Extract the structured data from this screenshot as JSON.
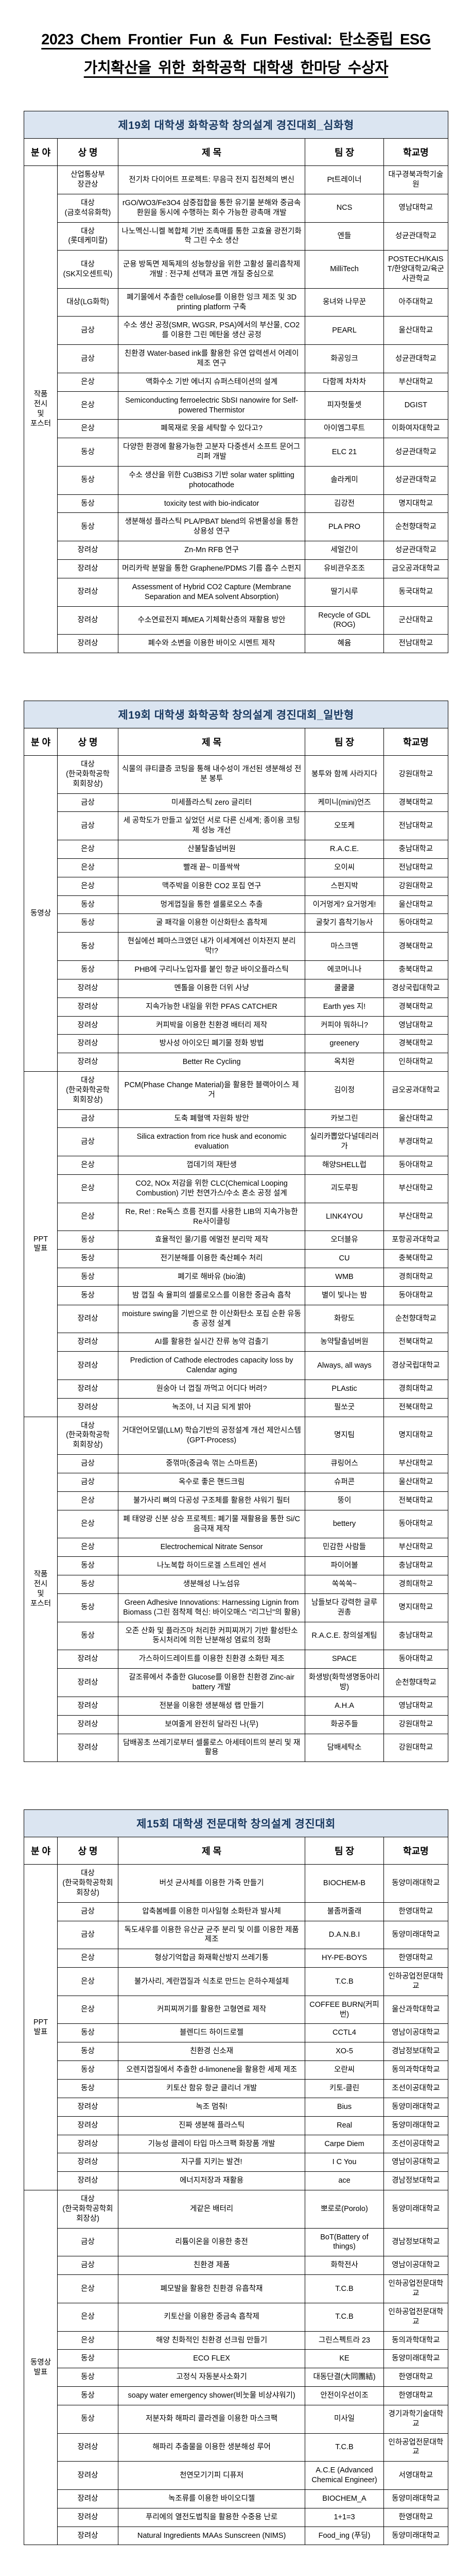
{
  "page_title": "2023 Chem Frontier Fun & Fun Festival: 탄소중립 ESG\n가치확산을 위한 화학공학 대학생 한마당 수상자",
  "theme": {
    "table_title_bg": "#dbe5f1",
    "table_title_color": "#17375e",
    "border_color": "#000000"
  },
  "tables": [
    {
      "title": "제19회 대학생 화학공학 창의설계 경진대회_심화형",
      "columns": [
        "분 야",
        "상 명",
        "제  목",
        "팀 장",
        "학교명"
      ],
      "groups": [
        {
          "category": "작품\n전시\n및\n포스터",
          "rows": [
            {
              "award": "산업통상부\n장관상",
              "title": "전기차 다이어트 프로젝트: 무음극 전지 집전체의 변신",
              "team": "Pt트레이너",
              "school": "대구경북과학기술원"
            },
            {
              "award": "대상\n(금호석유화학)",
              "title": "rGO/WO3/Fe3O4 삼중접합을 통한 유기물 분해와 중금속 환원을 동시에 수행하는 회수 가능한 광촉매 개발",
              "team": "NCS",
              "school": "영남대학교"
            },
            {
              "award": "대상\n(롯데케미칼)",
              "title": "나노멕신-니켈 복합체 기반 조촉매를 통한 고효율 광전기화학 그린 수소 생산",
              "team": "엔들",
              "school": "성균관대학교"
            },
            {
              "award": "대상\n(SK지오센트릭)",
              "title": "군용 방독면 제독제의 성능향상을 위한 고활성 물리흡착제 개발 : 전구체 선택과 표면 개질 중심으로",
              "team": "MilliTech",
              "school": "POSTECH/KAIST/한양대학교/육군사관학교"
            },
            {
              "award": "대상(LG화학)",
              "title": "폐기물에서 추출한 cellulose를 이용한 잉크 제조 및 3D printing platform 구축",
              "team": "웅녀와 나무꾼",
              "school": "아주대학교"
            },
            {
              "award": "금상",
              "title": "수소 생산 공정(SMR, WGSR, PSA)에서의 부산물, CO2를 이용한 그린 메탄올 생산 공정",
              "team": "PEARL",
              "school": "울산대학교"
            },
            {
              "award": "금상",
              "title": "친환경 Water-based ink를 활용한 유연 압력센서 어레이 제조 연구",
              "team": "화공잉크",
              "school": "성균관대학교"
            },
            {
              "award": "은상",
              "title": "액화수소 기반 에너지 슈퍼스테이션의 설계",
              "team": "다함께 차차차",
              "school": "부산대학교"
            },
            {
              "award": "은상",
              "title": "Semiconducting ferroelectric SbSI nanowire for Self-powered Thermistor",
              "team": "피자헛둘셋",
              "school": "DGIST"
            },
            {
              "award": "은상",
              "title": "폐목재로 옷을 세탁할 수 있다고?",
              "team": "아이엠그루트",
              "school": "이화여자대학교"
            },
            {
              "award": "동상",
              "title": "다양한 환경에 활용가능한 고분자 다중센서 소프트 문어그리퍼 개발",
              "team": "ELC 21",
              "school": "성균관대학교"
            },
            {
              "award": "동상",
              "title": "수소 생산을 위한 Cu3BiS3 기반 solar water splitting photocathode",
              "team": "솔라케미",
              "school": "성균관대학교"
            },
            {
              "award": "동상",
              "title": "toxicity test with bio-indicator",
              "team": "김강전",
              "school": "명지대학교"
            },
            {
              "award": "동상",
              "title": "생분해성 플라스틱 PLA/PBAT blend의 유변물성을 통한 상용성 연구",
              "team": "PLA PRO",
              "school": "순천향대학교"
            },
            {
              "award": "장려상",
              "title": "Zn-Mn RFB 연구",
              "team": "세얼간이",
              "school": "성균관대학교"
            },
            {
              "award": "장려상",
              "title": "머리카락 분말을 통한 Graphene/PDMS 기름 흡수 스펀지",
              "team": "유비관우조조",
              "school": "금오공과대학교"
            },
            {
              "award": "장려상",
              "title": "Assessment of Hybrid CO2 Capture (Membrane Separation and MEA solvent Absorption)",
              "team": "딸기시루",
              "school": "동국대학교"
            },
            {
              "award": "장려상",
              "title": "수소연료전지 폐MEA 기체확산층의 재활용 방안",
              "team": "Recycle of GDL (ROG)",
              "school": "군산대학교"
            },
            {
              "award": "장려상",
              "title": "폐수와 소변을 이용한 바이오 시멘트 제작",
              "team": "혜윰",
              "school": "전남대학교"
            }
          ]
        }
      ]
    },
    {
      "title": "제19회 대학생 화학공학 창의설계 경진대회_일반형",
      "columns": [
        "분 야",
        "상 명",
        "제  목",
        "팀 장",
        "학교명"
      ],
      "groups": [
        {
          "category": "동영상",
          "rows": [
            {
              "award": "대상\n(한국화학공학\n회회장상)",
              "title": "식물의 큐티클층 코팅을 통해 내수성이 개선된 생분해성 전분 봉투",
              "team": "봉투와 함께 사라지다",
              "school": "강원대학교"
            },
            {
              "award": "금상",
              "title": "미세플라스틱 zero 글리터",
              "team": "케미니(mini)언즈",
              "school": "경북대학교"
            },
            {
              "award": "금상",
              "title": "세 공학도가 만들고 싶었던 서로 다른 신세계; 종이용 코팅제 성능 개선",
              "team": "오또케",
              "school": "전남대학교"
            },
            {
              "award": "은상",
              "title": "산불탈출넘버원",
              "team": "R.A.C.E.",
              "school": "충남대학교"
            },
            {
              "award": "은상",
              "title": "빨래 끝~ 미플싹싹",
              "team": "오이씨",
              "school": "전남대학교"
            },
            {
              "award": "은상",
              "title": "맥주박을 이용한 CO2 포집 연구",
              "team": "스펀지박",
              "school": "강원대학교"
            },
            {
              "award": "동상",
              "title": "멍게껍질을 통한 셀룰로오스 추출",
              "team": "이거멍게? 요거멍게!",
              "school": "울산대학교"
            },
            {
              "award": "동상",
              "title": "굴 패각을 이용한 이산화탄소 흡착제",
              "team": "굴찾기 흡착기능사",
              "school": "동아대학교"
            },
            {
              "award": "동상",
              "title": "현실에선 폐마스크였던 내가 이세계에선 이차전지 분리막!?",
              "team": "마스크맨",
              "school": "경북대학교"
            },
            {
              "award": "동상",
              "title": "PHB에 구리나노입자를 붙인 항균 바이오플라스틱",
              "team": "에코머니나",
              "school": "충북대학교"
            },
            {
              "award": "장려상",
              "title": "멘톨을 이용한 더위 사냥",
              "team": "쿨쿨쿨",
              "school": "경상국립대학교"
            },
            {
              "award": "장려상",
              "title": "지속가능한 내일을 위한 PFAS CATCHER",
              "team": "Earth yes 지!",
              "school": "경북대학교"
            },
            {
              "award": "장려상",
              "title": "커피박을 이용한 친환경 배터리 제작",
              "team": "커피야 뭐하니?",
              "school": "영남대학교"
            },
            {
              "award": "장려상",
              "title": "방사성 아이오딘 폐기물 정화 방법",
              "team": "greenery",
              "school": "경북대학교"
            },
            {
              "award": "장려상",
              "title": "Better Re Cycling",
              "team": "옥치완",
              "school": "인하대학교"
            }
          ]
        },
        {
          "category": "PPT\n발표",
          "rows": [
            {
              "award": "대상\n(한국화학공학\n회회장상)",
              "title": "PCM(Phase Change Material)을 활용한 블랙아이스 제거",
              "team": "김이정",
              "school": "금오공과대학교"
            },
            {
              "award": "금상",
              "title": "도축 폐혈액 자원화 방안",
              "team": "카보그린",
              "school": "울산대학교"
            },
            {
              "award": "금상",
              "title": "Silica extraction from rice husk and economic evaluation",
              "team": "실리카뽑았다널데리러가",
              "school": "부경대학교"
            },
            {
              "award": "은상",
              "title": "껍데기의 재탄생",
              "team": "해양SHELL럽",
              "school": "동아대학교"
            },
            {
              "award": "은상",
              "title": "CO2, NOx 저감을 위한 CLC(Chemical Looping Combustion) 기반 천연가스/수소 혼소 공정 설계",
              "team": "괴도루핑",
              "school": "부산대학교"
            },
            {
              "award": "은상",
              "title": "Re, Re! : Re독스 흐름 전지를 사용한 LIB의 지속가능한 Re사이클링",
              "team": "LINK4YOU",
              "school": "부산대학교"
            },
            {
              "award": "동상",
              "title": "효율적인 물/기름 에멀전 분리막 제작",
              "team": "오더블유",
              "school": "포항공과대학교"
            },
            {
              "award": "동상",
              "title": "전기분해를 이용한 축산폐수 처리",
              "team": "CU",
              "school": "충북대학교"
            },
            {
              "award": "동상",
              "title": "폐기로 해바유 (bio油)",
              "team": "WMB",
              "school": "경희대학교"
            },
            {
              "award": "동상",
              "title": "밤 껍질 속 율피의 셀룰로오스를 이용한 중금속 흡착",
              "team": "별이 빛나는 밤",
              "school": "동아대학교"
            },
            {
              "award": "장려상",
              "title": "moisture swing을 기반으로 한 이산화탄소 포집 순환 유동층 공정 설계",
              "team": "화랑도",
              "school": "순천향대학교"
            },
            {
              "award": "장려상",
              "title": "AI를 활용한 실시간 잔류 농약 검출기",
              "team": "농약탈출넘버원",
              "school": "전북대학교"
            },
            {
              "award": "장려상",
              "title": "Prediction of Cathode electrodes capacity loss  by Calendar aging",
              "team": "Always, all ways",
              "school": "경상국립대학교"
            },
            {
              "award": "장려상",
              "title": "원숭아 너 껍질 까먹고 어디다 버려?",
              "team": "PLAstic",
              "school": "경희대학교"
            },
            {
              "award": "장려상",
              "title": "녹조야, 너 지금 되게 밝아",
              "team": "필쏘굿",
              "school": "전북대학교"
            }
          ]
        },
        {
          "category": "작품\n전시\n및\n포스터",
          "rows": [
            {
              "award": "대상\n(한국화학공학\n회회장상)",
              "title": "거대언어모델(LLM) 학습기반의 공정설계 개선 제안시스템(GPT-Process)",
              "team": "명지팀",
              "school": "명지대학교"
            },
            {
              "award": "금상",
              "title": "중꺾마(중금속 꺾는 스마트폰)",
              "team": "큐링어스",
              "school": "부산대학교"
            },
            {
              "award": "금상",
              "title": "옥수로 좋은 핸드크림",
              "team": "슈퍼콘",
              "school": "울산대학교"
            },
            {
              "award": "은상",
              "title": "불가사리 뼈의 다공성 구조체를 활용한 샤워기 필터",
              "team": "뚱이",
              "school": "전북대학교"
            },
            {
              "award": "은상",
              "title": "폐 태양광 신분 상승 프로젝트: 폐기물 재활용을 통한 Si/C 음극재 제작",
              "team": "bettery",
              "school": "동아대학교"
            },
            {
              "award": "은상",
              "title": "Electrochemical Nitrate Sensor",
              "team": "민감한 사람들",
              "school": "부산대학교"
            },
            {
              "award": "동상",
              "title": "나노복합 하이드로겔 스트레인 센서",
              "team": "파이어볼",
              "school": "충남대학교"
            },
            {
              "award": "동상",
              "title": "생분해성 나노섬유",
              "team": "쏙쏙쏙~",
              "school": "경희대학교"
            },
            {
              "award": "동상",
              "title": "Green Adhesive Innovations: Harnessing Lignin from Biomass (그린 점착제 혁신: 바이오매스 \"리그닌\"의 활용)",
              "team": "남들보다 강력한 글루권총",
              "school": "명지대학교"
            },
            {
              "award": "동상",
              "title": "오존 산화 및 플라즈마 처리한 커피찌꺼기 기반 활성탄소 동시처리에 의한 난분해성 염료의 정화",
              "team": "R.A.C.E. 창의설계팀",
              "school": "충남대학교"
            },
            {
              "award": "장려상",
              "title": "가스하이드레이트를 이용한 친환경 소화탄 제조",
              "team": "SPACE",
              "school": "동아대학교"
            },
            {
              "award": "장려상",
              "title": "갈조류에서 추출한 Glucose를 이용한 친환경 Zinc-air battery 개발",
              "team": "화생방(화학생명동아리방)",
              "school": "순천향대학교"
            },
            {
              "award": "장려상",
              "title": "전분을 이용한 생분해성 랩 만들기",
              "team": "A.H.A",
              "school": "영남대학교"
            },
            {
              "award": "장려상",
              "title": "보여줄게 완전히 달라진 나(무)",
              "team": "화공주들",
              "school": "강원대학교"
            },
            {
              "award": "장려상",
              "title": "담배꽁초 쓰레기로부터 셀룰로스 아세테이트의 분리 및 재활용",
              "team": "담배세탁소",
              "school": "강원대학교"
            }
          ]
        }
      ]
    },
    {
      "title": "제15회 대학생 전문대학 창의설계 경진대회",
      "columns": [
        "분 야",
        "상 명",
        "제  목",
        "팀 장",
        "학교명"
      ],
      "groups": [
        {
          "category": "PPT\n발표",
          "rows": [
            {
              "award": "대상\n(한국화학공학회\n회장상)",
              "title": "버섯 균사체를 이용한 가죽 만들기",
              "team": "BIOCHEM-B",
              "school": "동양미래대학교"
            },
            {
              "award": "금상",
              "title": "압축봄베를 이용한 미사일형 소화탄과 발사체",
              "team": "불좀꺼줄래",
              "school": "한영대학교"
            },
            {
              "award": "금상",
              "title": "독도새우를 이용한 유산균 균주 분리 및 이를 이용한 제품 제조",
              "team": "D.A.N.B.I",
              "school": "동양미래대학교"
            },
            {
              "award": "은상",
              "title": "형상기억합금 화재확산방지 쓰레기통",
              "team": "HY-PE-BOYS",
              "school": "한영대학교"
            },
            {
              "award": "은상",
              "title": "불가사리, 계란껍질과 식초로 만드는 은하수제설제",
              "team": "T.C.B",
              "school": "인하공업전문대학교"
            },
            {
              "award": "은상",
              "title": "커피찌꺼기를 활용한 고형연료 제작",
              "team": "COFFEE BURN(커피번)",
              "school": "울산과학대학교"
            },
            {
              "award": "동상",
              "title": "블렌디드 하이드로젤",
              "team": "CCTL4",
              "school": "영남이공대학교"
            },
            {
              "award": "동상",
              "title": "친환경 신소재",
              "team": "XO-5",
              "school": "경남정보대학교"
            },
            {
              "award": "동상",
              "title": "오렌지껍질에서 추출한 d-limonene을 활용한 세제 제조",
              "team": "오란씨",
              "school": "동의과학대학교"
            },
            {
              "award": "동상",
              "title": "키토산 함유 항균 클리너 개발",
              "team": "키토-클린",
              "school": "조선이공대학교"
            },
            {
              "award": "장려상",
              "title": "녹조 멈춰!",
              "team": "Bius",
              "school": "동양미래대학교"
            },
            {
              "award": "장려상",
              "title": "진짜 생분해 플라스틱",
              "team": "Real",
              "school": "동양미래대학교"
            },
            {
              "award": "장려상",
              "title": "기능성 클레이 타입 마스크팩 화장품 개발",
              "team": "Carpe Diem",
              "school": "조선이공대학교"
            },
            {
              "award": "장려상",
              "title": "지구를 지키는 발견!",
              "team": "I C You",
              "school": "영남이공대학교"
            },
            {
              "award": "장려상",
              "title": "에너지저장과 재활용",
              "team": "ace",
              "school": "경남정보대학교"
            }
          ]
        },
        {
          "category": "동영상\n발표",
          "rows": [
            {
              "award": "대상\n(한국화학공학회\n회장상)",
              "title": "게같은 배터리",
              "team": "뽀로로(Porolo)",
              "school": "동양미래대학교"
            },
            {
              "award": "금상",
              "title": "리튬이온을 이용한 충전",
              "team": "BoT(Battery of things)",
              "school": "경남정보대학교"
            },
            {
              "award": "금상",
              "title": "친환경 제품",
              "team": "화학전사",
              "school": "영남이공대학교"
            },
            {
              "award": "은상",
              "title": "폐모발을 활용한 친환경 유흡착재",
              "team": "T.C.B",
              "school": "인하공업전문대학교"
            },
            {
              "award": "은상",
              "title": "키토산을 이용한 중금속 흡착제",
              "team": "T.C.B",
              "school": "인하공업전문대학교"
            },
            {
              "award": "은상",
              "title": "해양 친화적인 친환경 선크림 만들기",
              "team": "그린스펙트라 23",
              "school": "동의과학대학교"
            },
            {
              "award": "동상",
              "title": "ECO FLEX",
              "team": "KE",
              "school": "동양미래대학교"
            },
            {
              "award": "동상",
              "title": "고정식 자동분사소화기",
              "team": "대동단결(大同團結)",
              "school": "한영대학교"
            },
            {
              "award": "동상",
              "title": "soapy water emergency shower(비눗물 비상샤워기)",
              "team": "안전이우선이조",
              "school": "한영대학교"
            },
            {
              "award": "동상",
              "title": "저분자화 해파리 콜라겐을 이용한 마스크팩",
              "team": "미사일",
              "school": "경기과학기술대학교"
            },
            {
              "award": "장려상",
              "title": "해파리 추출물을 이용한 생분해성 루어",
              "team": "T.C.B",
              "school": "인하공업전문대학교"
            },
            {
              "award": "장려상",
              "title": "천연모기기피 디퓨저",
              "team": "A.C.E (Advanced Chemical Engineer)",
              "school": "서영대학교"
            },
            {
              "award": "장려상",
              "title": "녹조류를 이용한 바이오디젤",
              "team": "BIOCHEM_A",
              "school": "동양미래대학교"
            },
            {
              "award": "장려상",
              "title": "푸리에의 열전도법칙을 활용한 수중용 난로",
              "team": "1+1=3",
              "school": "한영대학교"
            },
            {
              "award": "장려상",
              "title": "Natural Ingredients MAAs Sunscreen (NIMS)",
              "team": "Food_ing (푸딩)",
              "school": "동양미래대학교"
            }
          ]
        }
      ]
    }
  ]
}
